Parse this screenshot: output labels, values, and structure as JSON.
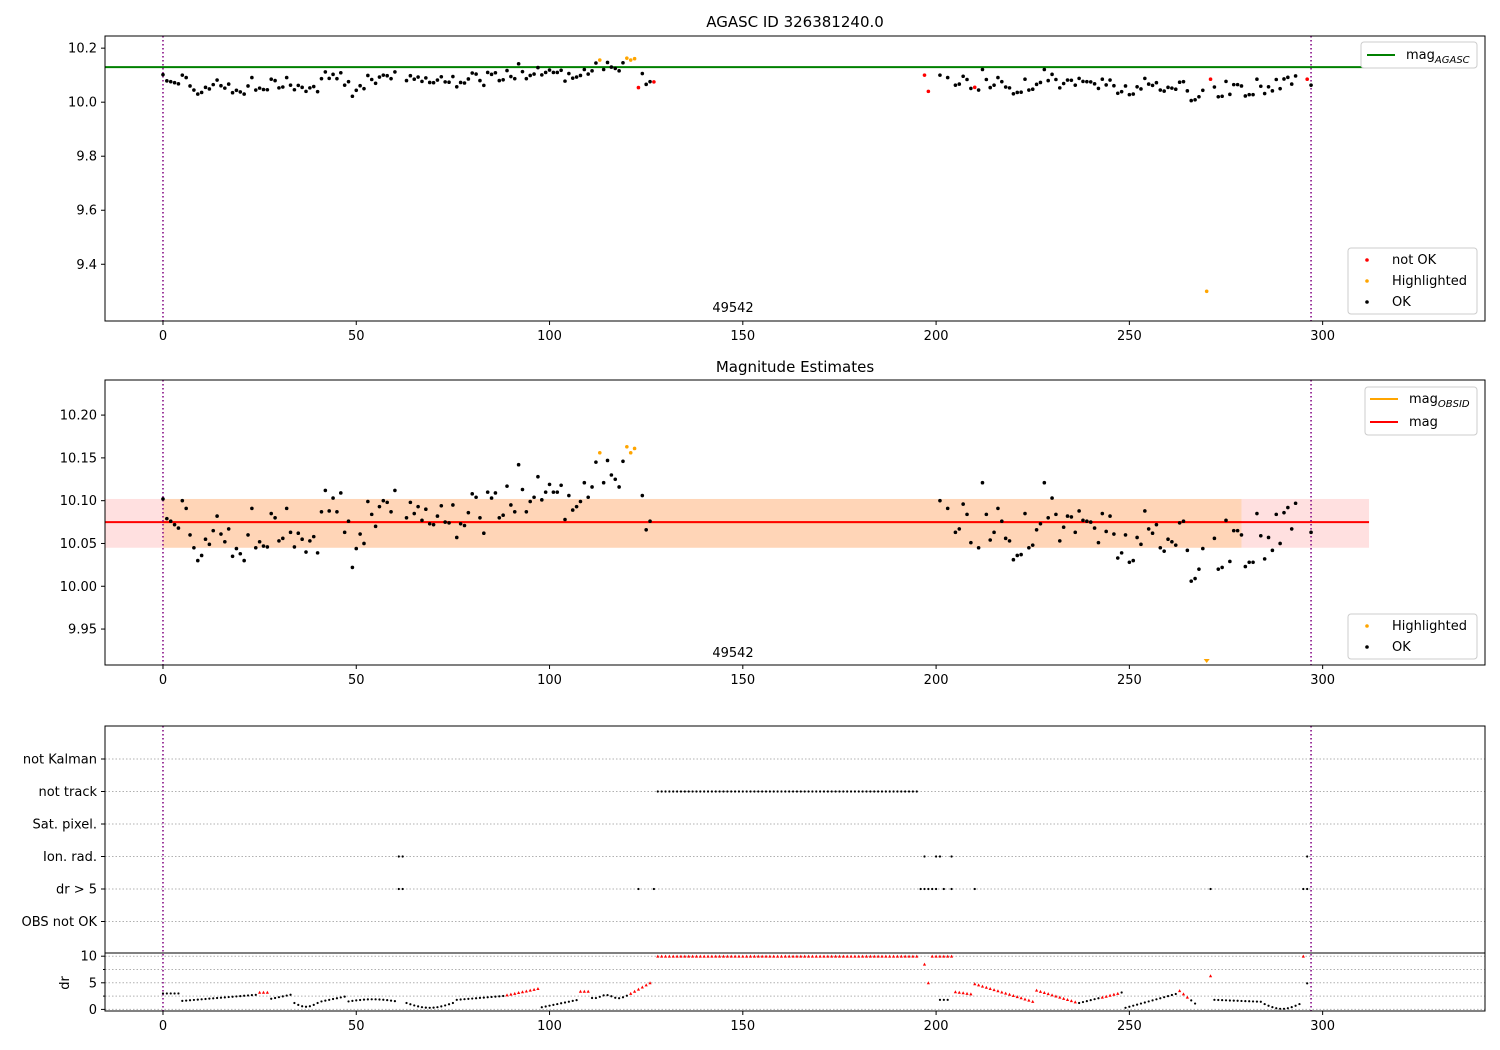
{
  "chart_data": [
    {
      "type": "scatter",
      "title": "AGASC ID 326381240.0",
      "xlim": [
        -15,
        342
      ],
      "ylim": [
        9.19,
        10.245
      ],
      "x_ticks": [
        0,
        50,
        100,
        150,
        200,
        250,
        300
      ],
      "y_ticks": [
        9.4,
        9.6,
        9.8,
        10.0,
        10.2
      ],
      "y_tick_labels": [
        "9.4",
        "9.6",
        "9.8",
        "10.0",
        "10.2"
      ],
      "obsid_lines": [
        0,
        297
      ],
      "obsid_label": "49542",
      "line_legend": {
        "label": "mag",
        "subscript": "AGASC"
      },
      "points_legend": [
        "not OK",
        "Highlighted",
        "OK"
      ],
      "mag_agasc": 10.13,
      "colors": {
        "ok": "#000000",
        "not_ok": "#ff0000",
        "highlighted": "#ffa500",
        "agasc_line": "#008000",
        "obsid_line": "#800080"
      },
      "series": [
        {
          "name": "OK",
          "color": "#000000",
          "points": [
            [
              0,
              10.102
            ],
            [
              1,
              10.079
            ],
            [
              2,
              10.076
            ],
            [
              3,
              10.072
            ],
            [
              4,
              10.068
            ],
            [
              5,
              10.1
            ],
            [
              6,
              10.091
            ],
            [
              7,
              10.06
            ],
            [
              8,
              10.045
            ],
            [
              9,
              10.03
            ],
            [
              10,
              10.036
            ],
            [
              11,
              10.055
            ],
            [
              12,
              10.049
            ],
            [
              13,
              10.065
            ],
            [
              14,
              10.082
            ],
            [
              15,
              10.061
            ],
            [
              16,
              10.052
            ],
            [
              17,
              10.067
            ],
            [
              18,
              10.035
            ],
            [
              19,
              10.044
            ],
            [
              20,
              10.038
            ],
            [
              21,
              10.03
            ],
            [
              22,
              10.06
            ],
            [
              23,
              10.091
            ],
            [
              24,
              10.045
            ],
            [
              25,
              10.052
            ],
            [
              26,
              10.047
            ],
            [
              27,
              10.046
            ],
            [
              28,
              10.085
            ],
            [
              29,
              10.08
            ],
            [
              30,
              10.053
            ],
            [
              31,
              10.056
            ],
            [
              32,
              10.091
            ],
            [
              33,
              10.063
            ],
            [
              34,
              10.046
            ],
            [
              35,
              10.062
            ],
            [
              36,
              10.055
            ],
            [
              37,
              10.04
            ],
            [
              38,
              10.053
            ],
            [
              39,
              10.058
            ],
            [
              40,
              10.039
            ],
            [
              41,
              10.087
            ],
            [
              42,
              10.112
            ],
            [
              43,
              10.088
            ],
            [
              44,
              10.103
            ],
            [
              45,
              10.087
            ],
            [
              46,
              10.109
            ],
            [
              47,
              10.063
            ],
            [
              48,
              10.076
            ],
            [
              49,
              10.022
            ],
            [
              50,
              10.044
            ],
            [
              51,
              10.061
            ],
            [
              52,
              10.05
            ],
            [
              53,
              10.099
            ],
            [
              54,
              10.084
            ],
            [
              55,
              10.07
            ],
            [
              56,
              10.093
            ],
            [
              57,
              10.1
            ],
            [
              58,
              10.098
            ],
            [
              59,
              10.087
            ],
            [
              60,
              10.112
            ],
            [
              63,
              10.08
            ],
            [
              64,
              10.098
            ],
            [
              65,
              10.085
            ],
            [
              66,
              10.093
            ],
            [
              67,
              10.077
            ],
            [
              68,
              10.09
            ],
            [
              69,
              10.073
            ],
            [
              70,
              10.072
            ],
            [
              71,
              10.082
            ],
            [
              72,
              10.094
            ],
            [
              73,
              10.075
            ],
            [
              74,
              10.074
            ],
            [
              75,
              10.095
            ],
            [
              76,
              10.057
            ],
            [
              77,
              10.073
            ],
            [
              78,
              10.071
            ],
            [
              79,
              10.086
            ],
            [
              80,
              10.108
            ],
            [
              81,
              10.104
            ],
            [
              82,
              10.08
            ],
            [
              83,
              10.062
            ],
            [
              84,
              10.11
            ],
            [
              85,
              10.103
            ],
            [
              86,
              10.109
            ],
            [
              87,
              10.08
            ],
            [
              88,
              10.083
            ],
            [
              89,
              10.117
            ],
            [
              90,
              10.095
            ],
            [
              91,
              10.087
            ],
            [
              92,
              10.142
            ],
            [
              93,
              10.113
            ],
            [
              94,
              10.087
            ],
            [
              95,
              10.099
            ],
            [
              96,
              10.104
            ],
            [
              97,
              10.128
            ],
            [
              98,
              10.101
            ],
            [
              99,
              10.11
            ],
            [
              100,
              10.119
            ],
            [
              101,
              10.11
            ],
            [
              102,
              10.11
            ],
            [
              103,
              10.118
            ],
            [
              104,
              10.078
            ],
            [
              105,
              10.106
            ],
            [
              106,
              10.089
            ],
            [
              107,
              10.093
            ],
            [
              108,
              10.099
            ],
            [
              109,
              10.121
            ],
            [
              110,
              10.104
            ],
            [
              111,
              10.116
            ],
            [
              112,
              10.145
            ],
            [
              114,
              10.121
            ],
            [
              115,
              10.147
            ],
            [
              116,
              10.13
            ],
            [
              117,
              10.125
            ],
            [
              118,
              10.116
            ],
            [
              119,
              10.146
            ],
            [
              124,
              10.106
            ],
            [
              125,
              10.066
            ],
            [
              126,
              10.076
            ],
            [
              201,
              10.1
            ],
            [
              203,
              10.091
            ],
            [
              205,
              10.063
            ],
            [
              206,
              10.067
            ],
            [
              207,
              10.096
            ],
            [
              208,
              10.084
            ],
            [
              209,
              10.051
            ],
            [
              211,
              10.045
            ],
            [
              212,
              10.121
            ],
            [
              213,
              10.084
            ],
            [
              214,
              10.054
            ],
            [
              215,
              10.063
            ],
            [
              216,
              10.091
            ],
            [
              217,
              10.076
            ],
            [
              218,
              10.056
            ],
            [
              219,
              10.053
            ],
            [
              220,
              10.031
            ],
            [
              221,
              10.036
            ],
            [
              222,
              10.037
            ],
            [
              223,
              10.085
            ],
            [
              224,
              10.045
            ],
            [
              225,
              10.048
            ],
            [
              226,
              10.066
            ],
            [
              227,
              10.073
            ],
            [
              228,
              10.121
            ],
            [
              229,
              10.08
            ],
            [
              230,
              10.103
            ],
            [
              231,
              10.084
            ],
            [
              232,
              10.053
            ],
            [
              233,
              10.069
            ],
            [
              234,
              10.082
            ],
            [
              235,
              10.081
            ],
            [
              236,
              10.063
            ],
            [
              237,
              10.088
            ],
            [
              238,
              10.077
            ],
            [
              239,
              10.076
            ],
            [
              240,
              10.075
            ],
            [
              241,
              10.068
            ],
            [
              242,
              10.051
            ],
            [
              243,
              10.085
            ],
            [
              244,
              10.064
            ],
            [
              245,
              10.082
            ],
            [
              246,
              10.061
            ],
            [
              247,
              10.033
            ],
            [
              248,
              10.039
            ],
            [
              249,
              10.06
            ],
            [
              250,
              10.028
            ],
            [
              251,
              10.03
            ],
            [
              252,
              10.057
            ],
            [
              253,
              10.049
            ],
            [
              254,
              10.088
            ],
            [
              255,
              10.067
            ],
            [
              256,
              10.062
            ],
            [
              257,
              10.072
            ],
            [
              258,
              10.045
            ],
            [
              259,
              10.041
            ],
            [
              260,
              10.055
            ],
            [
              261,
              10.052
            ],
            [
              262,
              10.048
            ],
            [
              263,
              10.074
            ],
            [
              264,
              10.076
            ],
            [
              265,
              10.042
            ],
            [
              266,
              10.006
            ],
            [
              267,
              10.009
            ],
            [
              268,
              10.02
            ],
            [
              269,
              10.044
            ],
            [
              272,
              10.056
            ],
            [
              273,
              10.02
            ],
            [
              274,
              10.022
            ],
            [
              275,
              10.077
            ],
            [
              276,
              10.029
            ],
            [
              277,
              10.065
            ],
            [
              278,
              10.065
            ],
            [
              279,
              10.06
            ],
            [
              280,
              10.023
            ],
            [
              281,
              10.028
            ],
            [
              282,
              10.028
            ],
            [
              283,
              10.085
            ],
            [
              284,
              10.059
            ],
            [
              285,
              10.032
            ],
            [
              286,
              10.057
            ],
            [
              287,
              10.042
            ],
            [
              288,
              10.084
            ],
            [
              289,
              10.05
            ],
            [
              290,
              10.086
            ],
            [
              291,
              10.092
            ],
            [
              292,
              10.067
            ],
            [
              293,
              10.097
            ],
            [
              297,
              10.063
            ]
          ]
        },
        {
          "name": "Highlighted",
          "color": "#ffa500",
          "points": [
            [
              113,
              10.156
            ],
            [
              120,
              10.163
            ],
            [
              121,
              10.156
            ],
            [
              122,
              10.161
            ],
            [
              270,
              9.3
            ]
          ]
        },
        {
          "name": "not OK",
          "color": "#ff0000",
          "points": [
            [
              123,
              10.054
            ],
            [
              127,
              10.075
            ],
            [
              197,
              10.1
            ],
            [
              198,
              10.04
            ],
            [
              210,
              10.055
            ],
            [
              271,
              10.085
            ],
            [
              296,
              10.085
            ]
          ]
        }
      ]
    },
    {
      "type": "scatter",
      "title": "Magnitude Estimates",
      "xlim": [
        -15,
        342
      ],
      "ylim": [
        9.908,
        10.241
      ],
      "x_ticks": [
        0,
        50,
        100,
        150,
        200,
        250,
        300
      ],
      "y_ticks": [
        9.95,
        10.0,
        10.05,
        10.1,
        10.15,
        10.2
      ],
      "y_tick_labels": [
        "9.95",
        "10.00",
        "10.05",
        "10.10",
        "10.15",
        "10.20"
      ],
      "obsid_lines": [
        0,
        297
      ],
      "obsid_label": "49542",
      "line_legend": [
        {
          "label": "mag",
          "subscript": "OBSID",
          "color": "#ffa500"
        },
        {
          "label": "mag",
          "color": "#ff0000"
        }
      ],
      "points_legend": [
        "Highlighted",
        "OK"
      ],
      "mag_obsid": {
        "value": 10.075,
        "band": [
          10.045,
          10.102
        ],
        "x_range": [
          0,
          279
        ]
      },
      "mag": {
        "value": 10.075,
        "band": [
          10.045,
          10.102
        ],
        "x_range": [
          -15,
          312
        ]
      },
      "off_scale_markers": [
        270
      ],
      "series_ref": "same points as first chart: OK and Highlighted"
    },
    {
      "type": "scatter",
      "title": "",
      "xlim": [
        -15,
        342
      ],
      "x_ticks": [
        0,
        50,
        100,
        150,
        200,
        250,
        300
      ],
      "obsid_lines": [
        0,
        297
      ],
      "flag_rows": [
        "not Kalman",
        "not track",
        "Sat. pixel.",
        "Ion. rad.",
        "dr > 5",
        "OBS not OK"
      ],
      "flags": {
        "not track": [
          [
            128,
            195
          ]
        ],
        "Ion. rad.": [
          61,
          62,
          197,
          200,
          201,
          204,
          296
        ],
        "dr > 5": [
          61,
          62,
          123,
          127,
          196,
          197,
          198,
          199,
          200,
          202,
          204,
          210,
          271,
          295,
          296
        ],
        "not Kalman": [],
        "Sat. pixel.": [],
        "OBS not OK": []
      },
      "dr_ylabel": "dr",
      "dr_ylim": [
        -0.3,
        10.6
      ],
      "dr_ticks": [
        0,
        5,
        10
      ],
      "dr_threshold": 5
    }
  ]
}
